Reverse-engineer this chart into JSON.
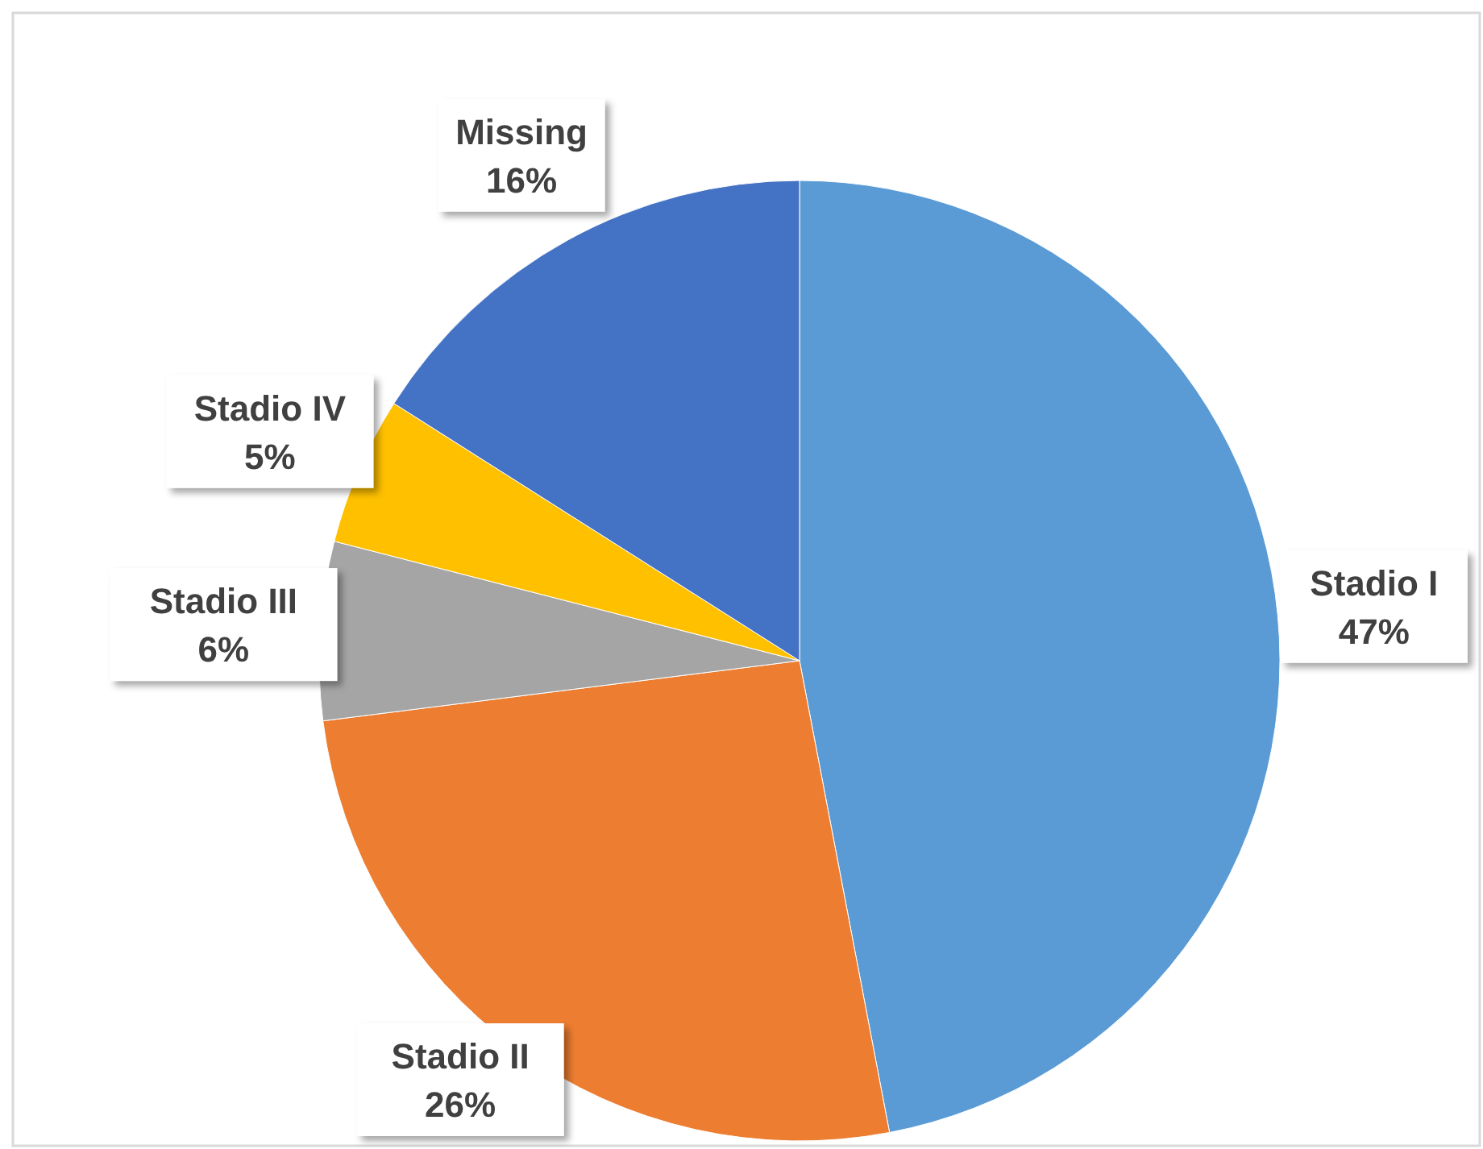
{
  "chart_data": {
    "type": "pie",
    "categories": [
      "Stadio I",
      "Stadio II",
      "Stadio III",
      "Stadio IV",
      "Missing"
    ],
    "values": [
      47,
      26,
      6,
      5,
      16
    ],
    "value_labels": [
      "47%",
      "26%",
      "6%",
      "5%",
      "16%"
    ],
    "colors": [
      "#5b9bd5",
      "#ed7d31",
      "#a5a5a5",
      "#ffc000",
      "#4472c4"
    ],
    "legend": false
  }
}
